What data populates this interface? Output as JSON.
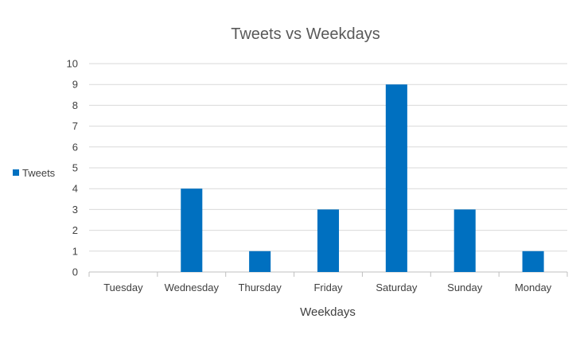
{
  "chart_data": {
    "type": "bar",
    "title": "Tweets vs Weekdays",
    "xlabel": "Weekdays",
    "ylabel": "",
    "categories": [
      "Tuesday",
      "Wednesday",
      "Thursday",
      "Friday",
      "Saturday",
      "Sunday",
      "Monday"
    ],
    "series": [
      {
        "name": "Tweets",
        "values": [
          0,
          4,
          1,
          3,
          9,
          3,
          1
        ],
        "color": "#0070c0"
      }
    ],
    "ylim": [
      0,
      10
    ],
    "yticks": [
      0,
      1,
      2,
      3,
      4,
      5,
      6,
      7,
      8,
      9,
      10
    ],
    "grid": true,
    "legend_position": "left"
  }
}
